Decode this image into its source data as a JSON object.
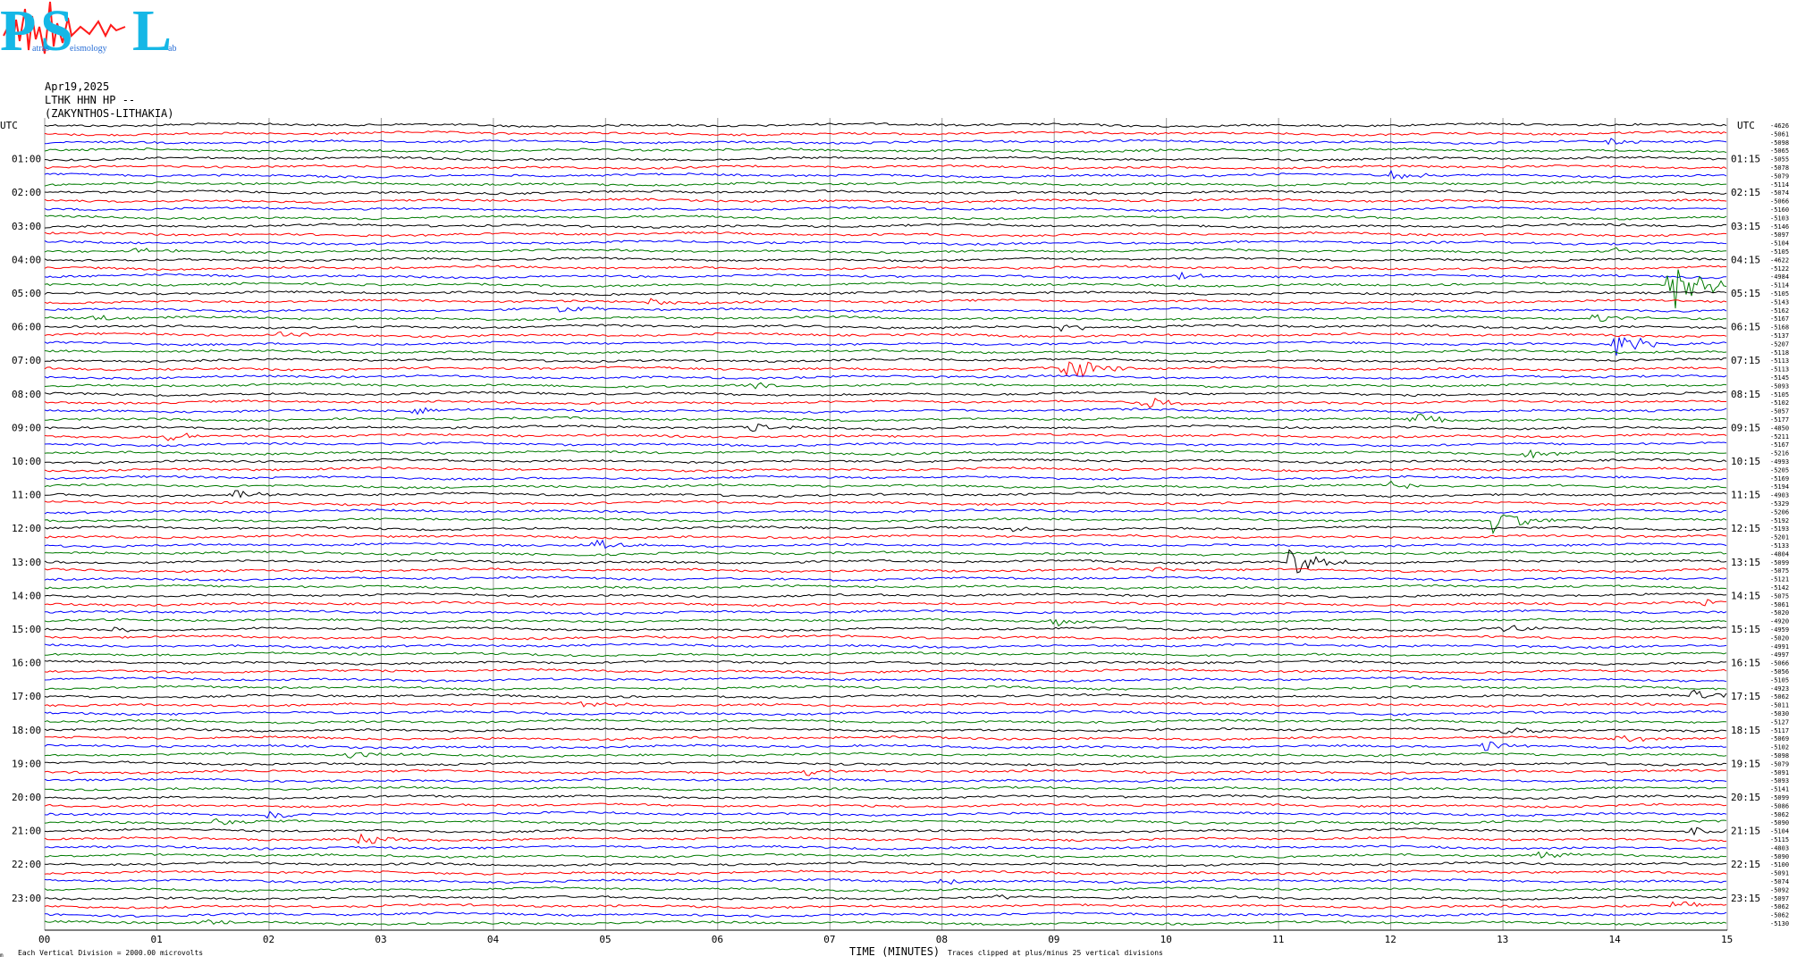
{
  "header": {
    "date": "Apr19,2025",
    "station": "LTHK HHN HP --",
    "location": "(ZAKYNTHOS-LITHAKIA)"
  },
  "logo": {
    "letter_p": "P",
    "letter_s": "S",
    "letter_l": "L",
    "sub_1": "atras",
    "sub_2": "eismology",
    "sub_3": "ab",
    "colors": {
      "letters": "#15b7e6",
      "wave": "#ff1a1a",
      "sub": "#2a6fd6"
    }
  },
  "footer": {
    "vertical_division": "Each Vertical Division = 2000.00 microvolts",
    "xlabel": "TIME (MINUTES)",
    "clip_note": "Traces clipped at plus/minus 25 vertical divisions",
    "mark": "m"
  },
  "chart_data": {
    "type": "line",
    "subtype": "helicorder",
    "xlabel": "TIME (MINUTES)",
    "xlim": [
      0,
      15
    ],
    "x_ticks": [
      "00",
      "01",
      "02",
      "03",
      "04",
      "05",
      "06",
      "07",
      "08",
      "09",
      "10",
      "11",
      "12",
      "13",
      "14",
      "15"
    ],
    "left_axis_label": "UTC",
    "right_axis_label": "UTC",
    "left_time_labels": [
      "01:00",
      "02:00",
      "03:00",
      "04:00",
      "05:00",
      "06:00",
      "07:00",
      "08:00",
      "09:00",
      "10:00",
      "11:00",
      "12:00",
      "13:00",
      "14:00",
      "15:00",
      "16:00",
      "17:00",
      "18:00",
      "19:00",
      "20:00",
      "21:00",
      "22:00",
      "23:00"
    ],
    "right_time_labels": [
      "01:15",
      "02:15",
      "03:15",
      "04:15",
      "05:15",
      "06:15",
      "07:15",
      "08:15",
      "09:15",
      "10:15",
      "11:15",
      "12:15",
      "13:15",
      "14:15",
      "15:15",
      "16:15",
      "17:15",
      "18:15",
      "19:15",
      "20:15",
      "21:15",
      "22:15",
      "23:15"
    ],
    "trace_count": 96,
    "minutes_per_trace": 15,
    "trace_colors": [
      "#000000",
      "#ff0000",
      "#0000ff",
      "#007a00"
    ],
    "trace_offsets": [
      "-4626",
      "-5061",
      "-5098",
      "-5065",
      "-5055",
      "-5078",
      "-5079",
      "-5114",
      "-5074",
      "-5066",
      "-5160",
      "-5103",
      "-5146",
      "-5097",
      "-5104",
      "-5105",
      "-4622",
      "-5122",
      "-4984",
      "-5114",
      "-5105",
      "-5143",
      "-5162",
      "-5167",
      "-5168",
      "-5137",
      "-5207",
      "-5118",
      "-5113",
      "-5113",
      "-5145",
      "-5093",
      "-5105",
      "-5102",
      "-5057",
      "-5177",
      "-4850",
      "-5211",
      "-5167",
      "-5216",
      "-4993",
      "-5205",
      "-5169",
      "-5194",
      "-4903",
      "-5329",
      "-5206",
      "-5192",
      "-5193",
      "-5201",
      "-5133",
      "-4804",
      "-5099",
      "-5075",
      "-5121",
      "-5142",
      "-5075",
      "-5061",
      "-5020",
      "-4920",
      "-4959",
      "-5020",
      "-4991",
      "-4997",
      "-5066",
      "-5056",
      "-5105",
      "-4923",
      "-5062",
      "-5011",
      "-5030",
      "-5127",
      "-5117",
      "-5069",
      "-5102",
      "-5098",
      "-5079",
      "-5091",
      "-5093",
      "-5141",
      "-5099",
      "-5086",
      "-5062",
      "-5090",
      "-5104",
      "-5115",
      "-4803",
      "-5090",
      "-5100",
      "-5091",
      "-5074",
      "-5092",
      "-5097",
      "-5062",
      "-5062",
      "-5130"
    ],
    "events": [
      {
        "trace": 2,
        "minute": 13.9,
        "amplitude": 5
      },
      {
        "trace": 6,
        "minute": 12.0,
        "amplitude": 6
      },
      {
        "trace": 15,
        "minute": 0.8,
        "amplitude": 4
      },
      {
        "trace": 15,
        "minute": 13.9,
        "amplitude": 5
      },
      {
        "trace": 18,
        "minute": 10.1,
        "amplitude": 4
      },
      {
        "trace": 19,
        "minute": 14.5,
        "amplitude": 48
      },
      {
        "trace": 21,
        "minute": 5.4,
        "amplitude": 4
      },
      {
        "trace": 22,
        "minute": 4.6,
        "amplitude": 6
      },
      {
        "trace": 23,
        "minute": 0.4,
        "amplitude": 4
      },
      {
        "trace": 23,
        "minute": 13.8,
        "amplitude": 6
      },
      {
        "trace": 24,
        "minute": 9.0,
        "amplitude": 6
      },
      {
        "trace": 25,
        "minute": 2.1,
        "amplitude": 5
      },
      {
        "trace": 26,
        "minute": 14.0,
        "amplitude": 18
      },
      {
        "trace": 29,
        "minute": 9.1,
        "amplitude": 20
      },
      {
        "trace": 31,
        "minute": 6.3,
        "amplitude": 5
      },
      {
        "trace": 33,
        "minute": 9.8,
        "amplitude": 7
      },
      {
        "trace": 34,
        "minute": 3.3,
        "amplitude": 5
      },
      {
        "trace": 35,
        "minute": 12.2,
        "amplitude": 7
      },
      {
        "trace": 36,
        "minute": 6.3,
        "amplitude": 6
      },
      {
        "trace": 37,
        "minute": 1.1,
        "amplitude": 5
      },
      {
        "trace": 39,
        "minute": 13.2,
        "amplitude": 6
      },
      {
        "trace": 43,
        "minute": 12.0,
        "amplitude": 6
      },
      {
        "trace": 44,
        "minute": 1.7,
        "amplitude": 5
      },
      {
        "trace": 47,
        "minute": 12.9,
        "amplitude": 16
      },
      {
        "trace": 48,
        "minute": 8.6,
        "amplitude": 4
      },
      {
        "trace": 50,
        "minute": 4.9,
        "amplitude": 6
      },
      {
        "trace": 52,
        "minute": 11.1,
        "amplitude": 18
      },
      {
        "trace": 53,
        "minute": 9.8,
        "amplitude": 5
      },
      {
        "trace": 57,
        "minute": 14.8,
        "amplitude": 5
      },
      {
        "trace": 59,
        "minute": 9.0,
        "amplitude": 5
      },
      {
        "trace": 60,
        "minute": 0.6,
        "amplitude": 4
      },
      {
        "trace": 60,
        "minute": 13.0,
        "amplitude": 6
      },
      {
        "trace": 68,
        "minute": 14.7,
        "amplitude": 8
      },
      {
        "trace": 69,
        "minute": 4.8,
        "amplitude": 5
      },
      {
        "trace": 72,
        "minute": 13.0,
        "amplitude": 5
      },
      {
        "trace": 73,
        "minute": 14.0,
        "amplitude": 5
      },
      {
        "trace": 74,
        "minute": 12.8,
        "amplitude": 8
      },
      {
        "trace": 75,
        "minute": 2.7,
        "amplitude": 5
      },
      {
        "trace": 77,
        "minute": 6.8,
        "amplitude": 4
      },
      {
        "trace": 82,
        "minute": 2.0,
        "amplitude": 5
      },
      {
        "trace": 83,
        "minute": 1.5,
        "amplitude": 5
      },
      {
        "trace": 84,
        "minute": 14.7,
        "amplitude": 7
      },
      {
        "trace": 85,
        "minute": 2.8,
        "amplitude": 7
      },
      {
        "trace": 87,
        "minute": 13.3,
        "amplitude": 5
      },
      {
        "trace": 90,
        "minute": 8.0,
        "amplitude": 5
      },
      {
        "trace": 92,
        "minute": 8.5,
        "amplitude": 4
      },
      {
        "trace": 93,
        "minute": 14.5,
        "amplitude": 4
      },
      {
        "trace": 95,
        "minute": 1.4,
        "amplitude": 4
      }
    ]
  }
}
